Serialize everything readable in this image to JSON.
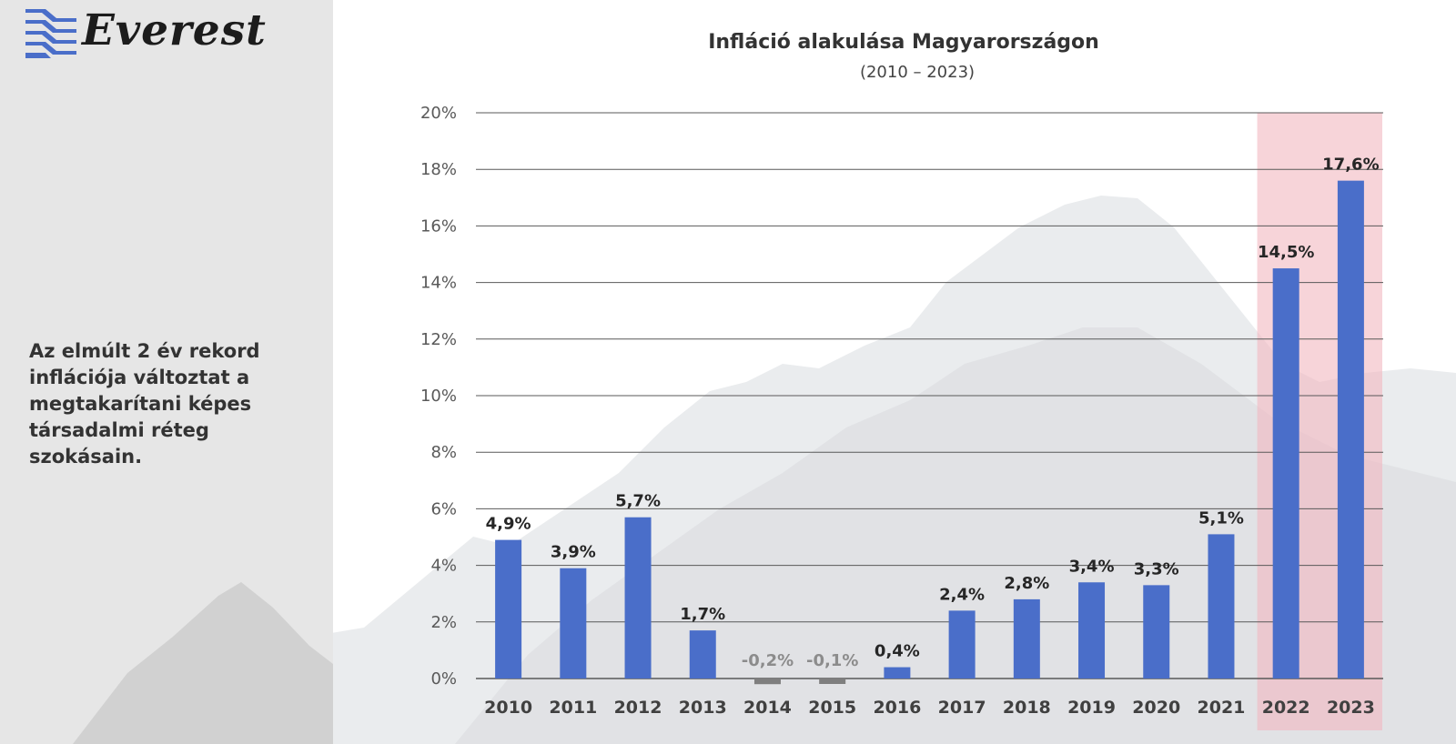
{
  "brand": {
    "name": "Everest",
    "colors": {
      "primary": "#4a6ec9",
      "text": "#1c1c1c"
    }
  },
  "sidebar": {
    "text": "Az elmúlt 2 év rekord inflációja változtat a megtakarítani képes társadalmi réteg szokásain."
  },
  "colors": {
    "bar": "#4a6ec9",
    "negative_bar": "#7f7f7f",
    "highlight": "#f2b8bf",
    "gridline": "#595959",
    "sidebar_bg": "#e6e6e6"
  },
  "chart_data": {
    "type": "bar",
    "title": "Infláció alakulása Magyarországon",
    "subtitle": "(2010 – 2023)",
    "xlabel": "",
    "ylabel": "",
    "categories": [
      "2010",
      "2011",
      "2012",
      "2013",
      "2014",
      "2015",
      "2016",
      "2017",
      "2018",
      "2019",
      "2020",
      "2021",
      "2022",
      "2023"
    ],
    "values": [
      4.9,
      3.9,
      5.7,
      1.7,
      -0.2,
      -0.1,
      0.4,
      2.4,
      2.8,
      3.4,
      3.3,
      5.1,
      14.5,
      17.6
    ],
    "value_labels": [
      "4,9%",
      "3,9%",
      "5,7%",
      "1,7%",
      "-0,2%",
      "-0,1%",
      "0,4%",
      "2,4%",
      "2,8%",
      "3,4%",
      "3,3%",
      "5,1%",
      "14,5%",
      "17,6%"
    ],
    "ylim": [
      0,
      20
    ],
    "yticks": [
      0,
      2,
      4,
      6,
      8,
      10,
      12,
      14,
      16,
      18,
      20
    ],
    "ytick_labels": [
      "0%",
      "2%",
      "4%",
      "6%",
      "8%",
      "10%",
      "12%",
      "14%",
      "16%",
      "18%",
      "20%"
    ],
    "grid": true,
    "legend": "none",
    "highlighted_categories": [
      "2022",
      "2023"
    ]
  }
}
